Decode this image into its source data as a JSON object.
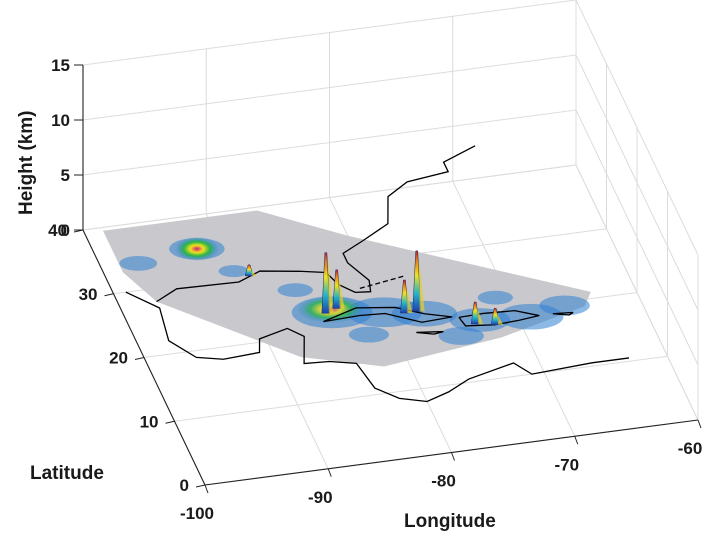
{
  "chart_data": {
    "type": "surface3d",
    "title": "",
    "xlabel": "Longitude",
    "ylabel": "Latitude",
    "zlabel": "Height (km)",
    "xlim": [
      -100,
      -60
    ],
    "ylim": [
      0,
      40
    ],
    "zlim": [
      0,
      15
    ],
    "xticks": [
      "-100",
      "-90",
      "-80",
      "-70",
      "-60"
    ],
    "yticks": [
      "0",
      "10",
      "20",
      "30",
      "40"
    ],
    "zticks": [
      "0",
      "5",
      "10",
      "15"
    ],
    "grid": true,
    "colors": {
      "swath": "#c9c9cd",
      "low": "#2f7fd1",
      "mid": "#f2e21b",
      "high": "#d9261c",
      "coast": "#000000"
    },
    "peaks": [
      {
        "lon": -84.5,
        "lat": 23.0,
        "height_km": 5.5
      },
      {
        "lon": -83.5,
        "lat": 23.5,
        "height_km": 3.5
      },
      {
        "lon": -77.5,
        "lat": 21.5,
        "height_km": 5.5
      },
      {
        "lon": -78.5,
        "lat": 21.5,
        "height_km": 3.0
      },
      {
        "lon": -89.0,
        "lat": 30.0,
        "height_km": 1.0
      },
      {
        "lon": -73.5,
        "lat": 18.5,
        "height_km": 2.0
      },
      {
        "lon": -72.0,
        "lat": 18.0,
        "height_km": 1.5
      }
    ]
  }
}
